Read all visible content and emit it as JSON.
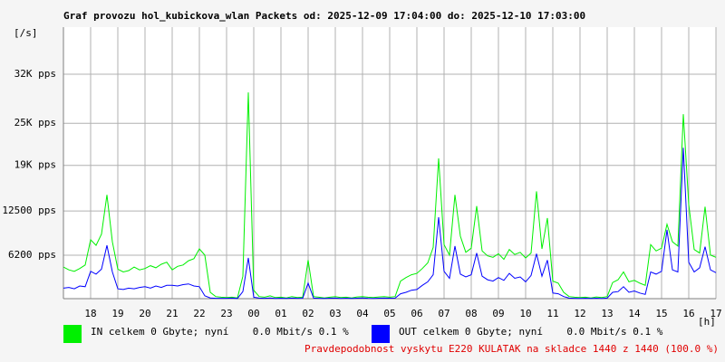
{
  "chart_data": {
    "type": "line",
    "title": "Graf provozu hol_kubickova_wlan Packets od: 2025-12-09 17:04:00 do: 2025-12-10 17:03:00",
    "y_label": "[/s]",
    "x_label": "[h]",
    "annotation": "Pravdepodobnost vyskytu E220 KULATAK na skladce 1440 z 1440 (100.0 %)",
    "grid": true,
    "xlim": [
      0,
      24
    ],
    "ylim": [
      0,
      38700
    ],
    "xticks": [
      {
        "value": 1,
        "label": "18"
      },
      {
        "value": 2,
        "label": "19"
      },
      {
        "value": 3,
        "label": "20"
      },
      {
        "value": 4,
        "label": "21"
      },
      {
        "value": 5,
        "label": "22"
      },
      {
        "value": 6,
        "label": "23"
      },
      {
        "value": 7,
        "label": "00"
      },
      {
        "value": 8,
        "label": "01"
      },
      {
        "value": 9,
        "label": "02"
      },
      {
        "value": 10,
        "label": "03"
      },
      {
        "value": 11,
        "label": "04"
      },
      {
        "value": 12,
        "label": "05"
      },
      {
        "value": 13,
        "label": "06"
      },
      {
        "value": 14,
        "label": "07"
      },
      {
        "value": 15,
        "label": "08"
      },
      {
        "value": 16,
        "label": "09"
      },
      {
        "value": 17,
        "label": "10"
      },
      {
        "value": 18,
        "label": "11"
      },
      {
        "value": 19,
        "label": "12"
      },
      {
        "value": 20,
        "label": "13"
      },
      {
        "value": 21,
        "label": "14"
      },
      {
        "value": 22,
        "label": "15"
      },
      {
        "value": 23,
        "label": "16"
      },
      {
        "value": 24,
        "label": "17"
      }
    ],
    "yticks": [
      {
        "value": 6200,
        "label": "6200 pps"
      },
      {
        "value": 12500,
        "label": "12500 pps"
      },
      {
        "value": 19000,
        "label": "19K pps"
      },
      {
        "value": 25000,
        "label": "25K pps"
      },
      {
        "value": 32000,
        "label": "32K pps"
      }
    ],
    "x": [
      0,
      0.2,
      0.4,
      0.6,
      0.8,
      1,
      1.2,
      1.4,
      1.6,
      1.8,
      2,
      2.2,
      2.4,
      2.6,
      2.8,
      3,
      3.2,
      3.4,
      3.6,
      3.8,
      4,
      4.2,
      4.4,
      4.6,
      4.8,
      5,
      5.2,
      5.4,
      5.6,
      5.8,
      6,
      6.2,
      6.4,
      6.6,
      6.8,
      7,
      7.2,
      7.4,
      7.6,
      7.8,
      8,
      8.2,
      8.4,
      8.6,
      8.8,
      9,
      9.2,
      9.4,
      9.6,
      9.8,
      10,
      10.2,
      10.4,
      10.6,
      10.8,
      11,
      11.2,
      11.4,
      11.6,
      11.8,
      12,
      12.2,
      12.4,
      12.6,
      12.8,
      13,
      13.2,
      13.4,
      13.6,
      13.8,
      14,
      14.2,
      14.4,
      14.6,
      14.8,
      15,
      15.2,
      15.4,
      15.6,
      15.8,
      16,
      16.2,
      16.4,
      16.6,
      16.8,
      17,
      17.2,
      17.4,
      17.6,
      17.8,
      18,
      18.2,
      18.4,
      18.6,
      18.8,
      19,
      19.2,
      19.4,
      19.6,
      19.8,
      20,
      20.2,
      20.4,
      20.6,
      20.8,
      21,
      21.2,
      21.4,
      21.6,
      21.8,
      22,
      22.2,
      22.4,
      22.6,
      22.8,
      23,
      23.2,
      23.4,
      23.6,
      23.8,
      24
    ],
    "series": [
      {
        "name": "IN celkem 0 Gbyte; nyní    0.0 Mbit/s 0.1 %",
        "color": "#00f000",
        "values": [
          4500,
          4100,
          3900,
          4300,
          4800,
          8400,
          7600,
          9200,
          14800,
          8100,
          4200,
          3800,
          4000,
          4500,
          4100,
          4300,
          4700,
          4400,
          4900,
          5200,
          4100,
          4600,
          4800,
          5400,
          5700,
          7100,
          6200,
          900,
          300,
          200,
          150,
          200,
          100,
          3200,
          29400,
          1200,
          300,
          200,
          400,
          150,
          200,
          100,
          300,
          150,
          200,
          5500,
          300,
          200,
          100,
          200,
          300,
          150,
          200,
          100,
          250,
          300,
          200,
          150,
          250,
          300,
          200,
          300,
          2500,
          3000,
          3400,
          3600,
          4300,
          5100,
          7300,
          20000,
          7700,
          6200,
          14800,
          8900,
          6600,
          7200,
          13200,
          6800,
          6100,
          5900,
          6400,
          5600,
          7000,
          6300,
          6600,
          5800,
          6500,
          15300,
          7100,
          11500,
          2500,
          2200,
          900,
          300,
          200,
          150,
          200,
          100,
          250,
          150,
          300,
          2300,
          2700,
          3800,
          2400,
          2600,
          2200,
          1900,
          7700,
          6800,
          7200,
          10600,
          8100,
          7500,
          26300,
          13400,
          7000,
          6500,
          13100,
          6200,
          5900
        ]
      },
      {
        "name": "OUT celkem 0 Gbyte; nyní    0.0 Mbit/s 0.1 %",
        "color": "#0000ff",
        "values": [
          1500,
          1600,
          1400,
          1800,
          1700,
          3900,
          3500,
          4200,
          7600,
          3800,
          1400,
          1300,
          1500,
          1400,
          1600,
          1700,
          1500,
          1800,
          1600,
          1900,
          1900,
          1800,
          2000,
          2100,
          1800,
          1700,
          400,
          100,
          50,
          50,
          50,
          80,
          30,
          1000,
          5800,
          200,
          80,
          50,
          100,
          40,
          60,
          40,
          80,
          50,
          60,
          2200,
          80,
          50,
          40,
          60,
          80,
          40,
          60,
          30,
          70,
          90,
          50,
          40,
          60,
          80,
          60,
          80,
          700,
          900,
          1200,
          1300,
          1900,
          2400,
          3400,
          11600,
          3900,
          2900,
          7500,
          3500,
          3100,
          3400,
          6500,
          3200,
          2700,
          2500,
          3000,
          2600,
          3600,
          2900,
          3100,
          2400,
          3300,
          6400,
          3200,
          5500,
          800,
          700,
          300,
          80,
          50,
          40,
          60,
          30,
          70,
          40,
          80,
          900,
          1000,
          1700,
          900,
          1100,
          800,
          600,
          3800,
          3500,
          3900,
          9800,
          4100,
          3800,
          21500,
          5200,
          3800,
          4400,
          7400,
          4100,
          3700
        ]
      }
    ]
  }
}
